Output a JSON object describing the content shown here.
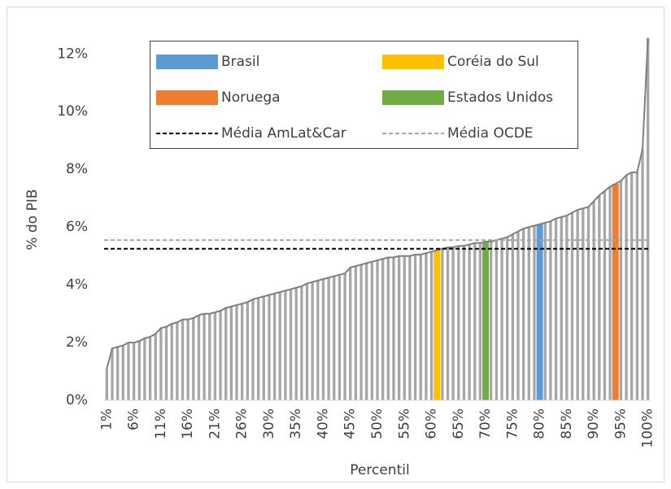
{
  "chart_data": {
    "type": "bar",
    "categories": [
      "1%",
      null,
      null,
      null,
      null,
      "6%",
      null,
      null,
      null,
      null,
      "11%",
      null,
      null,
      null,
      null,
      "16%",
      null,
      null,
      null,
      null,
      "21%",
      null,
      null,
      null,
      null,
      "26%",
      null,
      null,
      null,
      null,
      "30%",
      null,
      null,
      null,
      null,
      "35%",
      null,
      null,
      null,
      null,
      "40%",
      null,
      null,
      null,
      null,
      "45%",
      null,
      null,
      null,
      null,
      "50%",
      null,
      null,
      null,
      null,
      "55%",
      null,
      null,
      null,
      null,
      "60%",
      null,
      null,
      null,
      null,
      "65%",
      null,
      null,
      null,
      null,
      "70%",
      null,
      null,
      null,
      null,
      "75%",
      null,
      null,
      null,
      null,
      "80%",
      null,
      null,
      null,
      null,
      "85%",
      null,
      null,
      null,
      null,
      "90%",
      null,
      null,
      null,
      null,
      "95%",
      null,
      null,
      null,
      null,
      "100%"
    ],
    "x_label": "Percentil",
    "y_label": "% do PIB",
    "ylim": [
      0,
      12.6
    ],
    "yticks": [
      {
        "value": 0,
        "label": "0%"
      },
      {
        "value": 2,
        "label": "2%"
      },
      {
        "value": 4,
        "label": "4%"
      },
      {
        "value": 6,
        "label": "6%"
      },
      {
        "value": 8,
        "label": "8%"
      },
      {
        "value": 10,
        "label": "10%"
      },
      {
        "value": 12,
        "label": "12%"
      }
    ],
    "base": {
      "color": "#a6a6a6",
      "line_color": "#7f7f7f",
      "values": [
        1.1,
        1.8,
        1.85,
        1.9,
        2.0,
        2.0,
        2.05,
        2.15,
        2.2,
        2.3,
        2.5,
        2.55,
        2.65,
        2.7,
        2.8,
        2.8,
        2.85,
        2.95,
        3.0,
        3.0,
        3.05,
        3.1,
        3.2,
        3.25,
        3.3,
        3.35,
        3.4,
        3.5,
        3.55,
        3.6,
        3.65,
        3.7,
        3.75,
        3.8,
        3.85,
        3.9,
        3.95,
        4.05,
        4.1,
        4.15,
        4.2,
        4.25,
        4.3,
        4.35,
        4.4,
        4.6,
        4.65,
        4.7,
        4.75,
        4.8,
        4.85,
        4.9,
        4.95,
        4.95,
        5.0,
        5.0,
        5.0,
        5.05,
        5.05,
        5.1,
        5.15,
        5.2,
        5.25,
        5.3,
        5.3,
        5.35,
        5.35,
        5.4,
        5.45,
        5.45,
        5.5,
        5.5,
        5.55,
        5.6,
        5.65,
        5.75,
        5.85,
        5.95,
        6.0,
        6.05,
        6.1,
        6.15,
        6.2,
        6.3,
        6.35,
        6.4,
        6.5,
        6.6,
        6.65,
        6.7,
        6.9,
        7.1,
        7.25,
        7.4,
        7.5,
        7.6,
        7.8,
        7.9,
        7.9,
        8.7,
        12.55
      ]
    },
    "series": [
      {
        "name": "Brasil",
        "color": "#5b9bd5",
        "values": [
          null,
          null,
          null,
          null,
          null,
          null,
          null,
          null,
          null,
          null,
          null,
          null,
          null,
          null,
          null,
          null,
          null,
          null,
          null,
          null,
          null,
          null,
          null,
          null,
          null,
          null,
          null,
          null,
          null,
          null,
          null,
          null,
          null,
          null,
          null,
          null,
          null,
          null,
          null,
          null,
          null,
          null,
          null,
          null,
          null,
          null,
          null,
          null,
          null,
          null,
          null,
          null,
          null,
          null,
          null,
          null,
          null,
          null,
          null,
          null,
          null,
          null,
          null,
          null,
          null,
          null,
          null,
          null,
          null,
          null,
          null,
          null,
          null,
          null,
          null,
          null,
          null,
          null,
          null,
          null,
          6.1,
          null,
          null,
          null,
          null,
          null,
          null,
          null,
          null,
          null,
          null,
          null,
          null,
          null,
          null,
          null,
          null,
          null,
          null,
          null,
          null
        ]
      },
      {
        "name": "Coréia do Sul",
        "color": "#ffc000",
        "values": [
          null,
          null,
          null,
          null,
          null,
          null,
          null,
          null,
          null,
          null,
          null,
          null,
          null,
          null,
          null,
          null,
          null,
          null,
          null,
          null,
          null,
          null,
          null,
          null,
          null,
          null,
          null,
          null,
          null,
          null,
          null,
          null,
          null,
          null,
          null,
          null,
          null,
          null,
          null,
          null,
          null,
          null,
          null,
          null,
          null,
          null,
          null,
          null,
          null,
          null,
          null,
          null,
          null,
          null,
          null,
          null,
          null,
          null,
          null,
          null,
          null,
          5.2,
          null,
          null,
          null,
          null,
          null,
          null,
          null,
          null,
          null,
          null,
          null,
          null,
          null,
          null,
          null,
          null,
          null,
          null,
          null,
          null,
          null,
          null,
          null,
          null,
          null,
          null,
          null,
          null,
          null,
          null,
          null,
          null,
          null,
          null,
          null,
          null,
          null,
          null,
          null
        ]
      },
      {
        "name": "Noruega",
        "color": "#ed7d31",
        "values": [
          null,
          null,
          null,
          null,
          null,
          null,
          null,
          null,
          null,
          null,
          null,
          null,
          null,
          null,
          null,
          null,
          null,
          null,
          null,
          null,
          null,
          null,
          null,
          null,
          null,
          null,
          null,
          null,
          null,
          null,
          null,
          null,
          null,
          null,
          null,
          null,
          null,
          null,
          null,
          null,
          null,
          null,
          null,
          null,
          null,
          null,
          null,
          null,
          null,
          null,
          null,
          null,
          null,
          null,
          null,
          null,
          null,
          null,
          null,
          null,
          null,
          null,
          null,
          null,
          null,
          null,
          null,
          null,
          null,
          null,
          null,
          null,
          null,
          null,
          null,
          null,
          null,
          null,
          null,
          null,
          null,
          null,
          null,
          null,
          null,
          null,
          null,
          null,
          null,
          null,
          null,
          null,
          null,
          null,
          7.5,
          null,
          null,
          null,
          null,
          null,
          null
        ]
      },
      {
        "name": "Estados Unidos",
        "color": "#70ad47",
        "values": [
          null,
          null,
          null,
          null,
          null,
          null,
          null,
          null,
          null,
          null,
          null,
          null,
          null,
          null,
          null,
          null,
          null,
          null,
          null,
          null,
          null,
          null,
          null,
          null,
          null,
          null,
          null,
          null,
          null,
          null,
          null,
          null,
          null,
          null,
          null,
          null,
          null,
          null,
          null,
          null,
          null,
          null,
          null,
          null,
          null,
          null,
          null,
          null,
          null,
          null,
          null,
          null,
          null,
          null,
          null,
          null,
          null,
          null,
          null,
          null,
          null,
          null,
          null,
          null,
          null,
          null,
          null,
          null,
          null,
          null,
          5.5,
          null,
          null,
          null,
          null,
          null,
          null,
          null,
          null,
          null,
          null,
          null,
          null,
          null,
          null,
          null,
          null,
          null,
          null,
          null,
          null,
          null,
          null,
          null,
          null,
          null,
          null,
          null,
          null,
          null,
          null
        ]
      }
    ],
    "reference_lines": [
      {
        "name": "Média AmLat&Car",
        "value": 5.25,
        "color": "#000000"
      },
      {
        "name": "Média OCDE",
        "value": 5.55,
        "color": "#a6a6a6"
      }
    ]
  }
}
